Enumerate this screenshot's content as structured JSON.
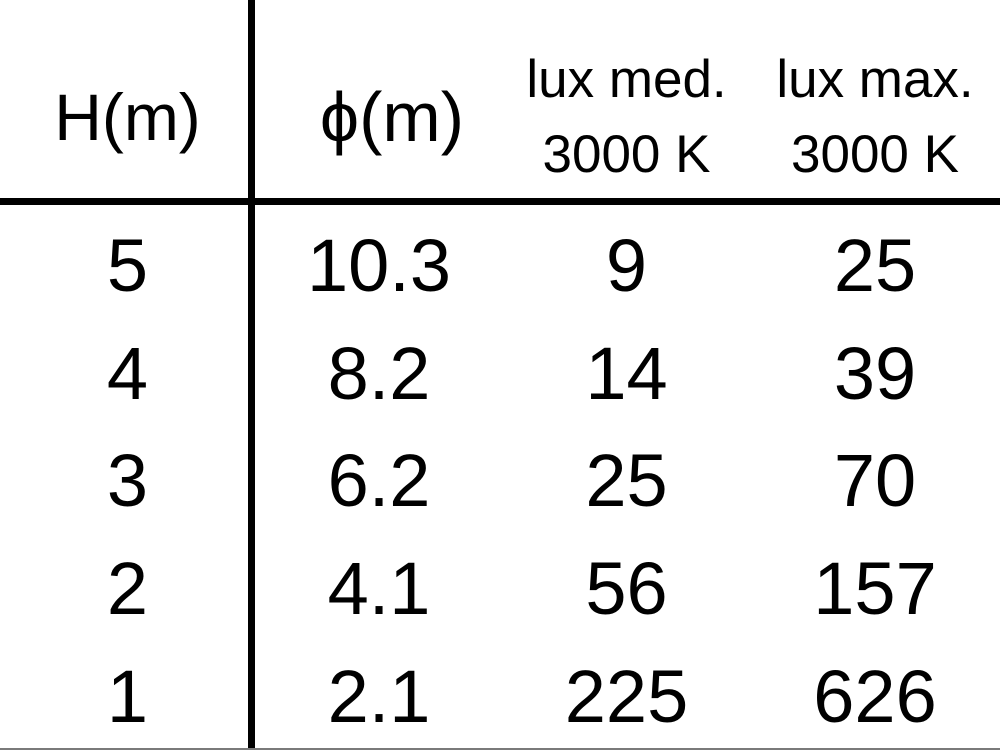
{
  "colors": {
    "text": "#000000",
    "background": "#ffffff",
    "divider": "#000000"
  },
  "chart_data": {
    "type": "table",
    "columns": [
      {
        "id": "height",
        "label": "H(m)"
      },
      {
        "id": "diameter",
        "label": "ϕ(m)"
      },
      {
        "id": "lux_med",
        "line1": "lux med.",
        "line2": "3000 K"
      },
      {
        "id": "lux_max",
        "line1": "lux max.",
        "line2": "3000 K"
      }
    ],
    "rows": [
      [
        "5",
        "10.3",
        "9",
        "25"
      ],
      [
        "4",
        "8.2",
        "14",
        "39"
      ],
      [
        "3",
        "6.2",
        "25",
        "70"
      ],
      [
        "2",
        "4.1",
        "56",
        "157"
      ],
      [
        "1",
        "2.1",
        "225",
        "626"
      ]
    ],
    "layout": {
      "vertical_divider_after_column": 1,
      "horizontal_divider_below_header": true,
      "grid": "partial"
    }
  }
}
